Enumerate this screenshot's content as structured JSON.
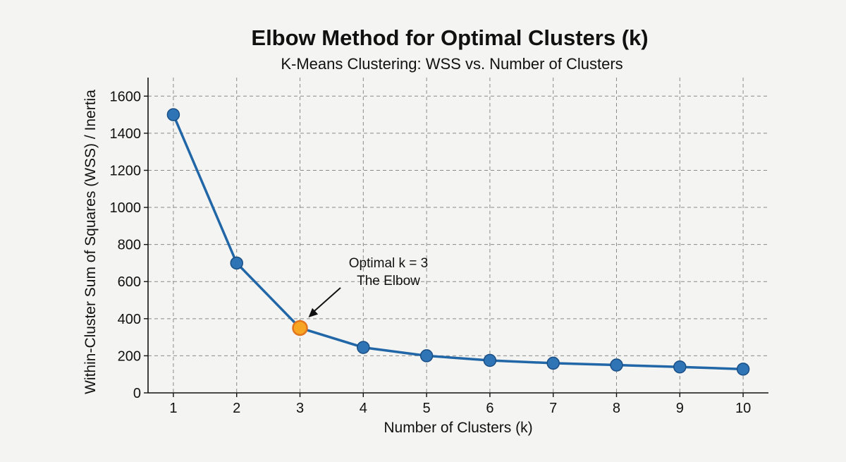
{
  "chart_data": {
    "type": "line",
    "title": "Elbow Method for Optimal Clusters (k)",
    "subtitle": "K-Means Clustering: WSS vs. Number of Clusters",
    "xlabel": "Number of Clusters (k)",
    "ylabel": "Within-Cluster Sum of Squares (WSS) / Inertia",
    "x": [
      1,
      2,
      3,
      4,
      5,
      6,
      7,
      8,
      9,
      10
    ],
    "series": [
      {
        "values": [
          1500,
          700,
          350,
          245,
          200,
          175,
          160,
          150,
          140,
          128
        ]
      }
    ],
    "xlim": [
      0.6,
      10.4
    ],
    "ylim": [
      0,
      1700
    ],
    "xticks": [
      1,
      2,
      3,
      4,
      5,
      6,
      7,
      8,
      9,
      10
    ],
    "yticks": [
      0,
      200,
      400,
      600,
      800,
      1000,
      1200,
      1400,
      1600
    ],
    "grid": true,
    "highlight": {
      "x": 3,
      "y": 350
    },
    "annotation": {
      "lines": [
        "Optimal k = 3",
        "The Elbow"
      ],
      "target_x": 3,
      "target_y": 350
    },
    "colors": {
      "line": "#2166a6",
      "marker": "#2f74b5",
      "marker_edge": "#1a4f86",
      "highlight": "#f6a623",
      "highlight_edge": "#e2741e",
      "grid": "#8a8a8a",
      "background": "#f4f4f2"
    }
  }
}
